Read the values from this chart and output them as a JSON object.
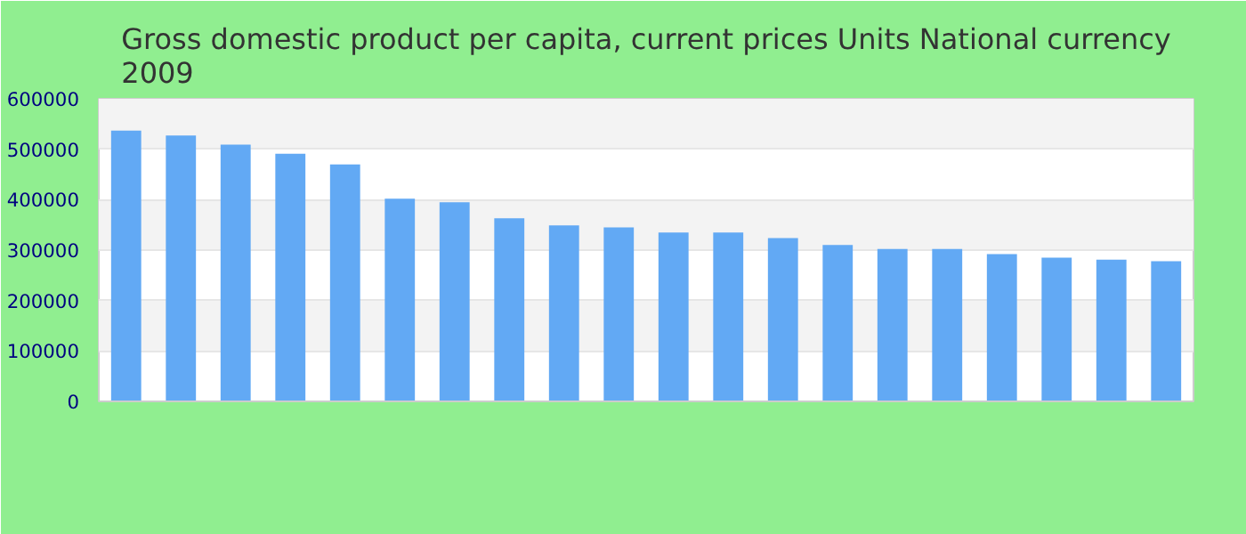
{
  "chart_data": {
    "type": "bar",
    "title": "Gross domestic product per capita, current prices Units National currency\n2009",
    "categories": [
      null,
      null,
      null,
      null,
      null,
      null,
      null,
      null,
      null,
      null,
      null,
      null,
      null,
      null,
      null,
      null,
      null,
      null,
      null,
      null
    ],
    "values": [
      537000,
      527000,
      509000,
      491000,
      470000,
      402000,
      395000,
      363000,
      349000,
      345000,
      335000,
      335000,
      324000,
      310000,
      302000,
      302000,
      292000,
      285000,
      281000,
      278000
    ],
    "color": "#62a9f4",
    "ylim": [
      0,
      600000
    ],
    "yticks": [
      0,
      100000,
      200000,
      300000,
      400000,
      500000,
      600000
    ],
    "grid": "y"
  }
}
